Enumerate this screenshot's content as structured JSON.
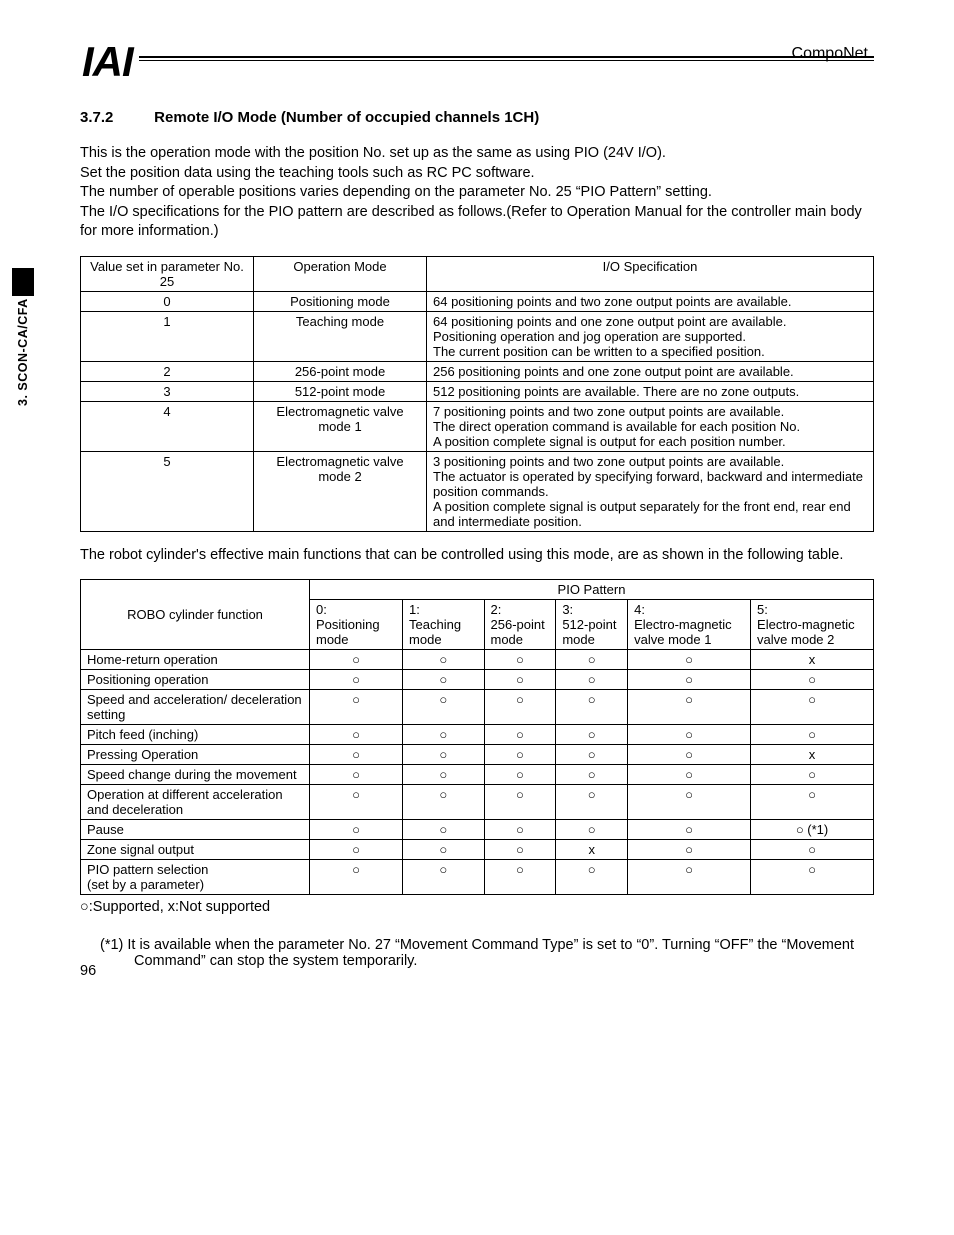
{
  "header": {
    "logo_text": "IAI",
    "right_text": "CompoNet"
  },
  "side_tab": {
    "text": "3. SCON-CA/CFA"
  },
  "section": {
    "number": "3.7.2",
    "title": "Remote I/O Mode (Number of occupied channels 1CH)"
  },
  "intro": "This is the operation mode with the position No. set up as the same as using PIO (24V I/O).\nSet the position data using the teaching tools such as RC PC software.\nThe number of operable positions varies depending on the parameter No. 25 “PIO Pattern” setting.\nThe I/O specifications for the PIO pattern are described as follows.(Refer to Operation Manual for the controller main body for more information.)",
  "table1": {
    "headers": [
      "Value set in parameter No. 25",
      "Operation Mode",
      "I/O Specification"
    ],
    "rows": [
      {
        "v": "0",
        "m": "Positioning mode",
        "s": "64 positioning points and two zone output points are available."
      },
      {
        "v": "1",
        "m": "Teaching mode",
        "s": "64 positioning points and one zone output point are available.\nPositioning operation and jog operation are supported.\nThe current position can be written to a specified position."
      },
      {
        "v": "2",
        "m": "256-point mode",
        "s": "256 positioning points and one zone output point are available."
      },
      {
        "v": "3",
        "m": "512-point mode",
        "s": "512 positioning points are available.    There are no zone outputs."
      },
      {
        "v": "4",
        "m": "Electromagnetic valve mode 1",
        "s": "7 positioning points and two zone output points are available.\nThe direct operation command is available for each position No.\nA position complete signal is output for each position number."
      },
      {
        "v": "5",
        "m": "Electromagnetic valve mode 2",
        "s": "3 positioning points and two zone output points are available.\nThe actuator is operated by specifying forward, backward and intermediate position commands.\nA position complete signal is output separately for the front end, rear end and intermediate position."
      }
    ]
  },
  "mid_text": "The robot cylinder's effective main functions that can be controlled using this mode, are as shown in the following table.",
  "table2": {
    "row_header": "ROBO cylinder function",
    "group_header": "PIO Pattern",
    "cols": [
      "0:\nPositioning mode",
      "1:\nTeaching mode",
      "2:\n256-point mode",
      "3:\n512-point mode",
      "4:\nElectro-magnetic valve mode 1",
      "5:\nElectro-magnetic valve mode 2"
    ],
    "rows": [
      {
        "fn": "Home-return operation",
        "v": [
          "○",
          "○",
          "○",
          "○",
          "○",
          "x"
        ]
      },
      {
        "fn": "Positioning operation",
        "v": [
          "○",
          "○",
          "○",
          "○",
          "○",
          "○"
        ]
      },
      {
        "fn": "Speed and acceleration/ deceleration setting",
        "v": [
          "○",
          "○",
          "○",
          "○",
          "○",
          "○"
        ]
      },
      {
        "fn": "Pitch feed (inching)",
        "v": [
          "○",
          "○",
          "○",
          "○",
          "○",
          "○"
        ]
      },
      {
        "fn": "Pressing Operation",
        "v": [
          "○",
          "○",
          "○",
          "○",
          "○",
          "x"
        ]
      },
      {
        "fn": "Speed change during the movement",
        "v": [
          "○",
          "○",
          "○",
          "○",
          "○",
          "○"
        ]
      },
      {
        "fn": "Operation at different acceleration and deceleration",
        "v": [
          "○",
          "○",
          "○",
          "○",
          "○",
          "○"
        ]
      },
      {
        "fn": "Pause",
        "v": [
          "○",
          "○",
          "○",
          "○",
          "○",
          "○ (*1)"
        ]
      },
      {
        "fn": "Zone signal output",
        "v": [
          "○",
          "○",
          "○",
          "x",
          "○",
          "○"
        ]
      },
      {
        "fn": "PIO pattern selection\n(set by a parameter)",
        "v": [
          "○",
          "○",
          "○",
          "○",
          "○",
          "○"
        ]
      }
    ]
  },
  "legend": "○:Supported, x:Not supported",
  "footnote": "(*1)  It is available when the parameter No. 27 “Movement Command Type” is set to “0”. Turning “OFF” the “Movement Command” can stop the system temporarily.",
  "page_number": "96"
}
